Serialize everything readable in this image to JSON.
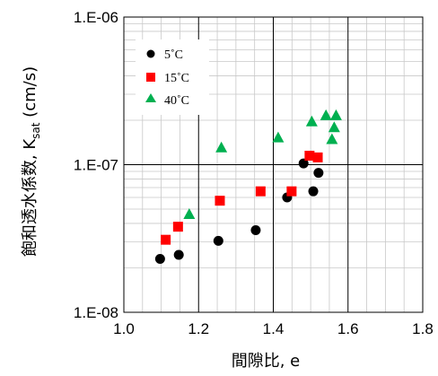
{
  "chart_data": {
    "type": "scatter",
    "xlabel": "間隙比, e",
    "ylabel_main": "飽和透水係数, K",
    "ylabel_sub": "sat",
    "ylabel_unit": " (cm/s)",
    "xlim": [
      1.0,
      1.8
    ],
    "ylim": [
      1e-08,
      1e-06
    ],
    "yscale": "log",
    "x_ticks": [
      "1.0",
      "1.2",
      "1.4",
      "1.6",
      "1.8"
    ],
    "y_ticks": [
      "1.E-08",
      "1.E-07",
      "1.E-06"
    ],
    "grid": true,
    "legend_position": "top-left",
    "series": [
      {
        "name": "5˚C",
        "marker": "circle",
        "color": "#000000",
        "x": [
          1.097,
          1.147,
          1.253,
          1.353,
          1.437,
          1.481,
          1.507,
          1.521
        ],
        "y": [
          2.3e-08,
          2.45e-08,
          3.05e-08,
          3.6e-08,
          6e-08,
          1.02e-07,
          6.6e-08,
          8.8e-08
        ]
      },
      {
        "name": "15˚C",
        "marker": "square",
        "color": "#ff0000",
        "x": [
          1.112,
          1.145,
          1.257,
          1.366,
          1.449,
          1.497,
          1.519
        ],
        "y": [
          3.1e-08,
          3.8e-08,
          5.7e-08,
          6.6e-08,
          6.6e-08,
          1.15e-07,
          1.12e-07
        ]
      },
      {
        "name": "40˚C",
        "marker": "triangle",
        "color": "#00b050",
        "x": [
          1.175,
          1.261,
          1.413,
          1.503,
          1.541,
          1.568,
          1.557,
          1.563
        ],
        "y": [
          4.6e-08,
          1.3e-07,
          1.52e-07,
          1.95e-07,
          2.15e-07,
          2.15e-07,
          1.48e-07,
          1.78e-07
        ]
      }
    ]
  }
}
